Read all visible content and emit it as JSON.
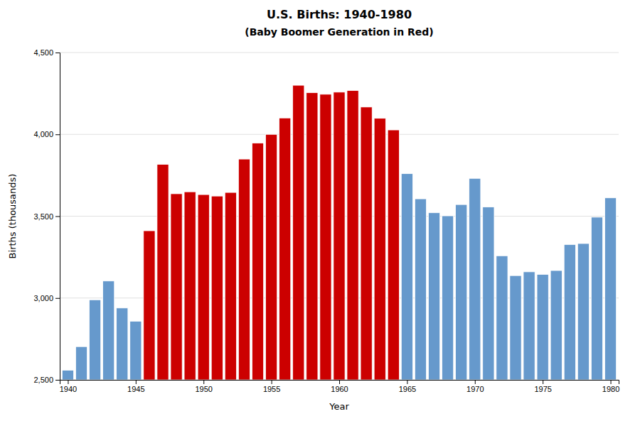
{
  "chart_data": {
    "type": "bar",
    "title": "U.S. Births: 1940-1980",
    "subtitle": "(Baby Boomer Generation in Red)",
    "x_label": "Year",
    "y_label": "Births (thousands)",
    "x": [
      1940,
      1941,
      1942,
      1943,
      1944,
      1945,
      1946,
      1947,
      1948,
      1949,
      1950,
      1951,
      1952,
      1953,
      1954,
      1955,
      1956,
      1957,
      1958,
      1959,
      1960,
      1961,
      1962,
      1963,
      1964,
      1965,
      1966,
      1967,
      1968,
      1969,
      1970,
      1971,
      1972,
      1973,
      1974,
      1975,
      1976,
      1977,
      1978,
      1979,
      1980
    ],
    "values": [
      2559,
      2703,
      2989,
      3104,
      2939,
      2858,
      3411,
      3817,
      3637,
      3649,
      3632,
      3623,
      3645,
      3849,
      3947,
      4000,
      4100,
      4300,
      4255,
      4245,
      4258,
      4268,
      4167,
      4098,
      4027,
      3760,
      3606,
      3521,
      3502,
      3571,
      3731,
      3556,
      3258,
      3137,
      3160,
      3144,
      3168,
      3327,
      3333,
      3494,
      3612
    ],
    "colors": [
      "#6699CC",
      "#6699CC",
      "#6699CC",
      "#6699CC",
      "#6699CC",
      "#6699CC",
      "#CC0000",
      "#CC0000",
      "#CC0000",
      "#CC0000",
      "#CC0000",
      "#CC0000",
      "#CC0000",
      "#CC0000",
      "#CC0000",
      "#CC0000",
      "#CC0000",
      "#CC0000",
      "#CC0000",
      "#CC0000",
      "#CC0000",
      "#CC0000",
      "#CC0000",
      "#CC0000",
      "#CC0000",
      "#6699CC",
      "#6699CC",
      "#6699CC",
      "#6699CC",
      "#6699CC",
      "#6699CC",
      "#6699CC",
      "#6699CC",
      "#6699CC",
      "#6699CC",
      "#6699CC",
      "#6699CC",
      "#6699CC",
      "#6699CC",
      "#6699CC",
      "#6699CC"
    ],
    "xlim": [
      1939.4,
      1980.6
    ],
    "xticks": [
      1940,
      1945,
      1950,
      1955,
      1960,
      1965,
      1970,
      1975,
      1980
    ],
    "ylim": [
      2500,
      4500
    ],
    "yticks": [
      {
        "value": 2500,
        "label": "2,500"
      },
      {
        "value": 3000,
        "label": "3,000"
      },
      {
        "value": 3500,
        "label": "3,500"
      },
      {
        "value": 4000,
        "label": "4,000"
      },
      {
        "value": 4500,
        "label": "4,500"
      }
    ],
    "grid": true
  }
}
